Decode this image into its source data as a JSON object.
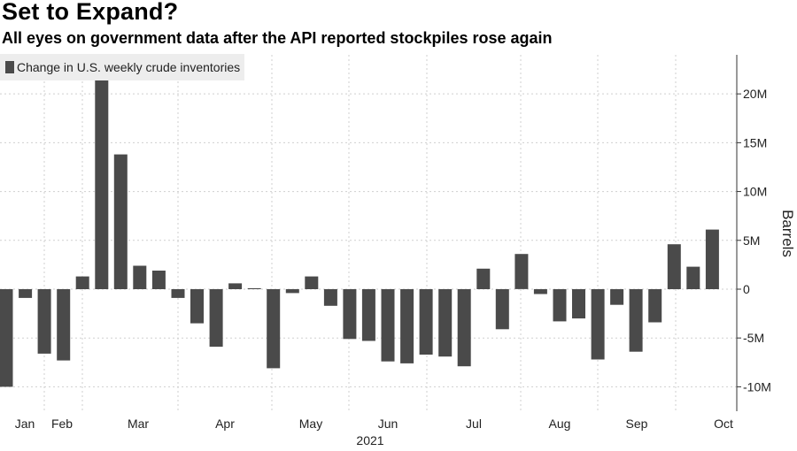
{
  "title": "Set to Expand?",
  "subtitle": "All eyes on government data after the API reported stockpiles rose again",
  "chart_data": {
    "type": "bar",
    "legend": "Change in U.S. weekly crude inventories",
    "legend_position": "top-left",
    "color": "#4a4a4a",
    "y_axis": {
      "label": "Barrels",
      "side": "right",
      "range": [
        -12500000,
        24000000
      ],
      "ticks": [
        20000000,
        15000000,
        10000000,
        5000000,
        0,
        -5000000,
        -10000000
      ],
      "tick_labels": [
        "20M",
        "15M",
        "10M",
        "5M",
        "0",
        "-5M",
        "-10M"
      ]
    },
    "x_axis": {
      "month_labels": [
        "Jan",
        "Feb",
        "Mar",
        "Apr",
        "May",
        "Jun",
        "Jul",
        "Aug",
        "Sep",
        "Oct"
      ],
      "year_label": "2021"
    },
    "grid": true,
    "values": [
      -10000000,
      -900000,
      -6600000,
      -7300000,
      1300000,
      21600000,
      13800000,
      2400000,
      1900000,
      -900000,
      -3500000,
      -5900000,
      600000,
      100000,
      -8100000,
      -400000,
      1300000,
      -1700000,
      -5100000,
      -5300000,
      -7400000,
      -7600000,
      -6700000,
      -6900000,
      -7900000,
      2100000,
      -4100000,
      3600000,
      -500000,
      -3300000,
      -3000000,
      -7200000,
      -1600000,
      -6400000,
      -3400000,
      4600000,
      2300000,
      6100000
    ]
  }
}
